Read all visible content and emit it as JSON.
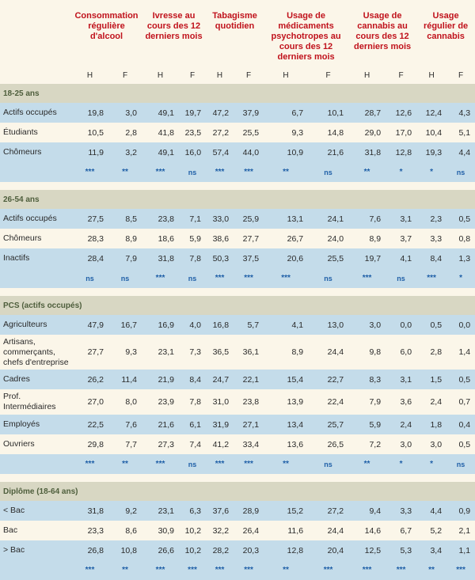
{
  "headers": [
    "Consommation régulière d'alcool",
    "Ivresse au cours des 12 derniers mois",
    "Tabagisme quotidien",
    "Usage de médicaments psychotropes au cours des 12 derniers mois",
    "Usage de cannabis au cours des 12 derniers mois",
    "Usage régulier de cannabis"
  ],
  "hf": [
    "H",
    "F",
    "H",
    "F",
    "H",
    "F",
    "H",
    "F",
    "H",
    "F",
    "H",
    "F"
  ],
  "sections": [
    {
      "title": "18-25 ans",
      "rows": [
        {
          "label": "Actifs occupés",
          "values": [
            "19,8",
            "3,0",
            "49,1",
            "19,7",
            "47,2",
            "37,9",
            "6,7",
            "10,1",
            "28,7",
            "12,6",
            "12,4",
            "4,3"
          ]
        },
        {
          "label": "Étudiants",
          "values": [
            "10,5",
            "2,8",
            "41,8",
            "23,5",
            "27,2",
            "25,5",
            "9,3",
            "14,8",
            "29,0",
            "17,0",
            "10,4",
            "5,1"
          ]
        },
        {
          "label": "Chômeurs",
          "values": [
            "11,9",
            "3,2",
            "49,1",
            "16,0",
            "57,4",
            "44,0",
            "10,9",
            "21,6",
            "31,8",
            "12,8",
            "19,3",
            "4,4"
          ]
        }
      ],
      "sig": [
        "***",
        "**",
        "***",
        "ns",
        "***",
        "***",
        "**",
        "ns",
        "**",
        "*",
        "*",
        "ns"
      ]
    },
    {
      "title": "26-54 ans",
      "rows": [
        {
          "label": "Actifs occupés",
          "values": [
            "27,5",
            "8,5",
            "23,8",
            "7,1",
            "33,0",
            "25,9",
            "13,1",
            "24,1",
            "7,6",
            "3,1",
            "2,3",
            "0,5"
          ]
        },
        {
          "label": "Chômeurs",
          "values": [
            "28,3",
            "8,9",
            "18,6",
            "5,9",
            "38,6",
            "27,7",
            "26,7",
            "24,0",
            "8,9",
            "3,7",
            "3,3",
            "0,8"
          ]
        },
        {
          "label": "Inactifs",
          "values": [
            "28,4",
            "7,9",
            "31,8",
            "7,8",
            "50,3",
            "37,5",
            "20,6",
            "25,5",
            "19,7",
            "4,1",
            "8,4",
            "1,3"
          ]
        }
      ],
      "sig": [
        "ns",
        "ns",
        "***",
        "ns",
        "***",
        "***",
        "***",
        "ns",
        "***",
        "ns",
        "***",
        "*"
      ]
    },
    {
      "title": "PCS (actifs occupés)",
      "rows": [
        {
          "label": "Agriculteurs",
          "values": [
            "47,9",
            "16,7",
            "16,9",
            "4,0",
            "16,8",
            "5,7",
            "4,1",
            "13,0",
            "3,0",
            "0,0",
            "0,5",
            "0,0"
          ]
        },
        {
          "label": "Artisans, commerçants, chefs d'entreprise",
          "values": [
            "27,7",
            "9,3",
            "23,1",
            "7,3",
            "36,5",
            "36,1",
            "8,9",
            "24,4",
            "9,8",
            "6,0",
            "2,8",
            "1,4"
          ]
        },
        {
          "label": "Cadres",
          "values": [
            "26,2",
            "11,4",
            "21,9",
            "8,4",
            "24,7",
            "22,1",
            "15,4",
            "22,7",
            "8,3",
            "3,1",
            "1,5",
            "0,5"
          ]
        },
        {
          "label": "Prof. Intermédiaires",
          "values": [
            "27,0",
            "8,0",
            "23,9",
            "7,8",
            "31,0",
            "23,8",
            "13,9",
            "22,4",
            "7,9",
            "3,6",
            "2,4",
            "0,7"
          ]
        },
        {
          "label": "Employés",
          "values": [
            "22,5",
            "7,6",
            "21,6",
            "6,1",
            "31,9",
            "27,1",
            "13,4",
            "25,7",
            "5,9",
            "2,4",
            "1,8",
            "0,4"
          ]
        },
        {
          "label": "Ouvriers",
          "values": [
            "29,8",
            "7,7",
            "27,3",
            "7,4",
            "41,2",
            "33,4",
            "13,6",
            "26,5",
            "7,2",
            "3,0",
            "3,0",
            "0,5"
          ]
        }
      ],
      "sig": [
        "***",
        "**",
        "***",
        "ns",
        "***",
        "***",
        "**",
        "ns",
        "**",
        "*",
        "*",
        "ns"
      ]
    },
    {
      "title": "Diplôme (18-64 ans)",
      "rows": [
        {
          "label": "< Bac",
          "values": [
            "31,8",
            "9,2",
            "23,1",
            "6,3",
            "37,6",
            "28,9",
            "15,2",
            "27,2",
            "9,4",
            "3,3",
            "4,4",
            "0,9"
          ]
        },
        {
          "label": "Bac",
          "values": [
            "23,3",
            "8,6",
            "30,9",
            "10,2",
            "32,2",
            "26,4",
            "11,6",
            "24,4",
            "14,6",
            "6,7",
            "5,2",
            "2,1"
          ]
        },
        {
          "label": "> Bac",
          "values": [
            "26,8",
            "10,8",
            "26,6",
            "10,2",
            "28,2",
            "20,3",
            "12,8",
            "20,4",
            "12,5",
            "5,3",
            "3,4",
            "1,1"
          ]
        }
      ],
      "sig": [
        "***",
        "**",
        "***",
        "***",
        "***",
        "***",
        "**",
        "***",
        "***",
        "***",
        "**",
        "***"
      ]
    }
  ]
}
